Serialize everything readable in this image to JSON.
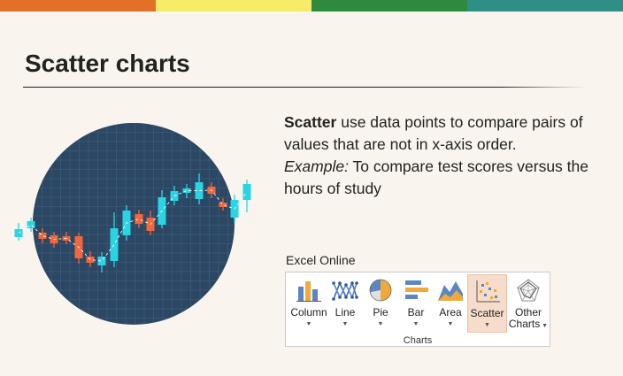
{
  "colors": {
    "top_bar": [
      "#e47027",
      "#f6ec6a",
      "#2e8b3e",
      "#2e8f86"
    ],
    "circle": "#2b4763",
    "candle_up": "#2ad4e4",
    "candle_down": "#f2673b",
    "selected_bg": "#f6dccb"
  },
  "title": "Scatter charts",
  "description": {
    "term": "Scatter",
    "text1": " use data points to compare pairs of values that are not in x-axis order.",
    "example_label": "Example:",
    "text2": " To compare test scores versus the hours of study"
  },
  "illustration": {
    "icon": "candlestick-chart-illustration"
  },
  "excel": {
    "label": "Excel Online",
    "group_label": "Charts",
    "buttons": [
      {
        "id": "column",
        "label": "Column",
        "icon": "column-chart-icon",
        "selected": false
      },
      {
        "id": "line",
        "label": "Line",
        "icon": "line-chart-icon",
        "selected": false
      },
      {
        "id": "pie",
        "label": "Pie",
        "icon": "pie-chart-icon",
        "selected": false
      },
      {
        "id": "bar",
        "label": "Bar",
        "icon": "bar-chart-icon",
        "selected": false
      },
      {
        "id": "area",
        "label": "Area",
        "icon": "area-chart-icon",
        "selected": false
      },
      {
        "id": "scatter",
        "label": "Scatter",
        "icon": "scatter-chart-icon",
        "selected": true
      },
      {
        "id": "other",
        "label": "Other Charts",
        "label_line1": "Other",
        "label_line2": "Charts",
        "icon": "radar-chart-icon",
        "selected": false
      }
    ]
  }
}
